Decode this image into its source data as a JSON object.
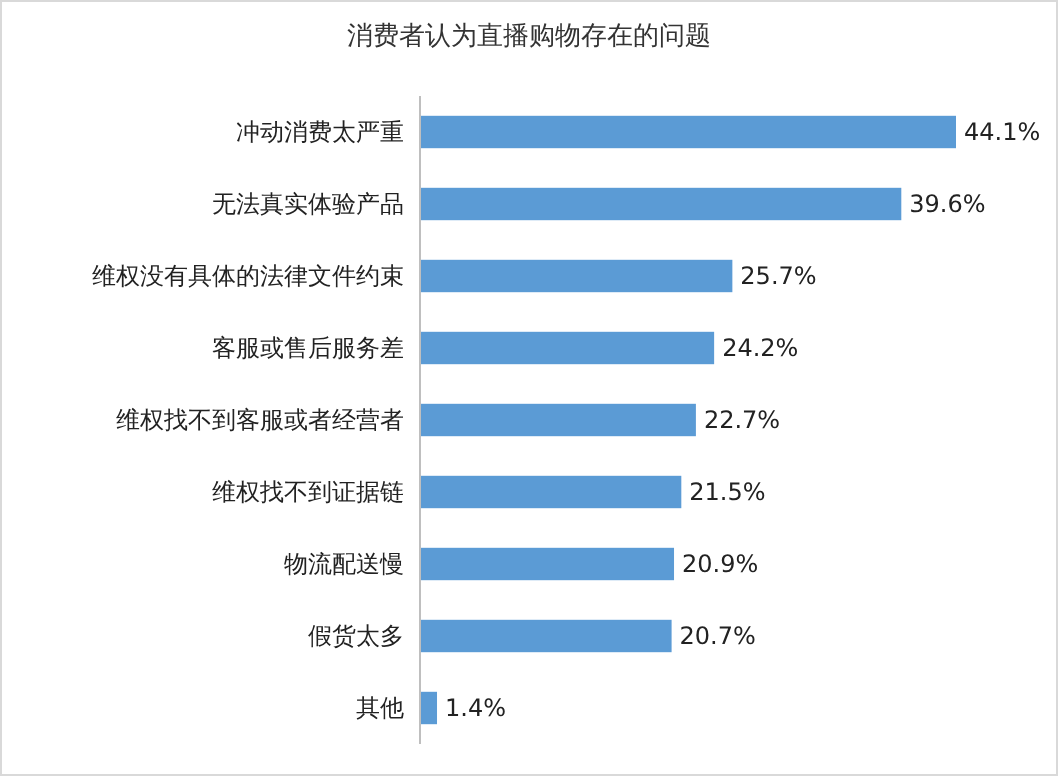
{
  "chart_data": {
    "type": "bar",
    "orientation": "horizontal",
    "title": "消费者认为直播购物存在的问题",
    "categories": [
      "冲动消费太严重",
      "无法真实体验产品",
      "维权没有具体的法律文件约束",
      "客服或售后服务差",
      "维权找不到客服或者经营者",
      "维权找不到证据链",
      "物流配送慢",
      "假货太多",
      "其他"
    ],
    "values": [
      44.1,
      39.6,
      25.7,
      24.2,
      22.7,
      21.5,
      20.9,
      20.7,
      1.4
    ],
    "value_labels": [
      "44.1%",
      "39.6%",
      "25.7%",
      "24.2%",
      "22.7%",
      "21.5%",
      "20.9%",
      "20.7%",
      "1.4%"
    ],
    "color": "#5b9bd5"
  }
}
